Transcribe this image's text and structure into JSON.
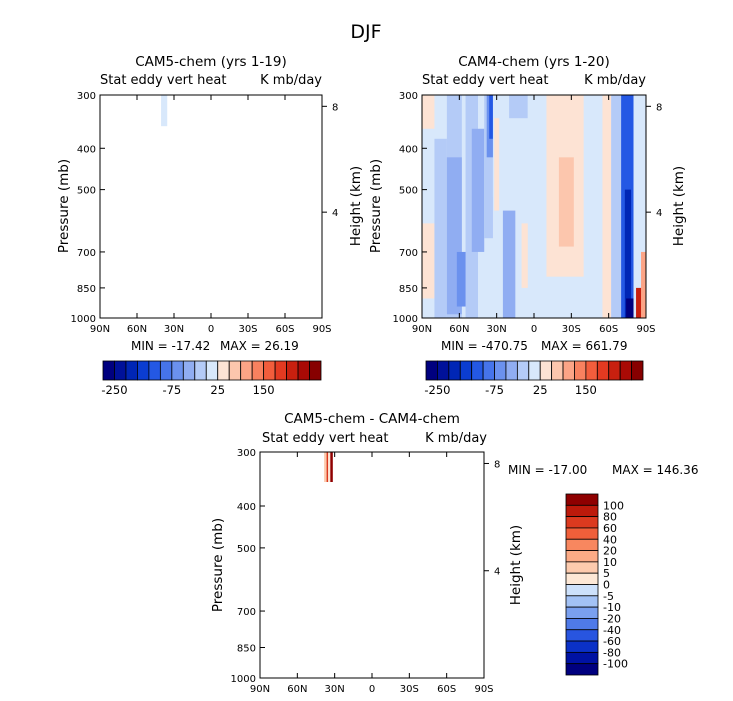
{
  "figure": {
    "title": "DJF"
  },
  "colorbar_top": {
    "colors": [
      "#00007f",
      "#00119a",
      "#0026b5",
      "#0b3dd1",
      "#2458e4",
      "#4674ea",
      "#6b91ee",
      "#90adf2",
      "#b4cbf7",
      "#d8e8fb",
      "#fde3d4",
      "#fcc6ad",
      "#fca486",
      "#f8815f",
      "#f25d3c",
      "#e33a21",
      "#c8200f",
      "#a90a05",
      "#870000"
    ],
    "tick_labels": [
      {
        "label": "-250",
        "boundary": 1
      },
      {
        "label": "-75",
        "boundary": 6
      },
      {
        "label": "25",
        "boundary": 10
      },
      {
        "label": "150",
        "boundary": 14
      }
    ]
  },
  "colorbar_diff": {
    "colors": [
      "#00007f",
      "#0012a3",
      "#0b31c7",
      "#2855e0",
      "#4f7ae8",
      "#7aa0ef",
      "#a3c2f5",
      "#cde1fb",
      "#fde8d6",
      "#fdcbae",
      "#fcab86",
      "#f8875f",
      "#f05f3a",
      "#dc3a1f",
      "#bd1a0b",
      "#8f0000"
    ],
    "labels": [
      "100",
      "80",
      "60",
      "40",
      "20",
      "10",
      "5",
      "0",
      "-5",
      "-10",
      "-20",
      "-40",
      "-60",
      "-80",
      "-100"
    ]
  },
  "chart_data": [
    {
      "type": "heatmap",
      "title": "CAM5-chem (yrs 1-19)",
      "subtitle_left": "Stat eddy vert heat",
      "subtitle_right": "K mb/day",
      "ylabel": "Pressure (mb)",
      "ylabel_right": "Height (km)",
      "x_ticks": [
        "90N",
        "60N",
        "30N",
        "0",
        "30S",
        "60S",
        "90S"
      ],
      "y_ticks": [
        "300",
        "400",
        "500",
        "700",
        "850",
        "1000"
      ],
      "y_ticks_right": [
        "8",
        "4"
      ],
      "stats_min_label": "MIN = -17.42",
      "stats_max_label": "MAX =  26.19",
      "ylim": [
        1000,
        300
      ],
      "xlim": [
        90,
        -90
      ],
      "cells": [
        {
          "x0": 40.5,
          "x1": 35.5,
          "p0": 300,
          "p1": 355,
          "color": "#d8e8fb"
        }
      ]
    },
    {
      "type": "heatmap",
      "title": "CAM4-chem (yrs 1-20)",
      "subtitle_left": "Stat eddy vert heat",
      "subtitle_right": "K mb/day",
      "ylabel": "Pressure (mb)",
      "ylabel_right": "Height (km)",
      "x_ticks": [
        "90N",
        "60N",
        "30N",
        "0",
        "30S",
        "60S",
        "90S"
      ],
      "y_ticks": [
        "300",
        "400",
        "500",
        "700",
        "850",
        "1000"
      ],
      "y_ticks_right": [
        "8",
        "4"
      ],
      "stats_min_label": "MIN = -470.75",
      "stats_max_label": "MAX = 661.79",
      "ylim": [
        1000,
        300
      ],
      "xlim": [
        90,
        -90
      ],
      "cells": [
        {
          "x0": 90,
          "x1": -90,
          "p0": 300,
          "p1": 1000,
          "color": "#d8e8fb"
        },
        {
          "x0": 90,
          "x1": 80,
          "p0": 300,
          "p1": 360,
          "color": "#fde3d4"
        },
        {
          "x0": 90,
          "x1": 80,
          "p0": 600,
          "p1": 900,
          "color": "#fde3d4"
        },
        {
          "x0": 80,
          "x1": 70,
          "p0": 380,
          "p1": 1000,
          "color": "#b4cbf7"
        },
        {
          "x0": 70,
          "x1": 58,
          "p0": 300,
          "p1": 1000,
          "color": "#b4cbf7"
        },
        {
          "x0": 70,
          "x1": 58,
          "p0": 420,
          "p1": 980,
          "color": "#90adf2"
        },
        {
          "x0": 62,
          "x1": 50,
          "p0": 700,
          "p1": 940,
          "color": "#6b91ee"
        },
        {
          "x0": 55,
          "x1": 45,
          "p0": 300,
          "p1": 1000,
          "color": "#b4cbf7"
        },
        {
          "x0": 50,
          "x1": 40,
          "p0": 360,
          "p1": 700,
          "color": "#90adf2"
        },
        {
          "x0": 40,
          "x1": 33,
          "p0": 300,
          "p1": 650,
          "color": "#b4cbf7"
        },
        {
          "x0": 38,
          "x1": 30,
          "p0": 300,
          "p1": 420,
          "color": "#6b91ee"
        },
        {
          "x0": 36,
          "x1": 32,
          "p0": 300,
          "p1": 380,
          "color": "#2458e4"
        },
        {
          "x0": 33,
          "x1": 27,
          "p0": 300,
          "p1": 520,
          "color": "#d8e8fb"
        },
        {
          "x0": 32,
          "x1": 28,
          "p0": 340,
          "p1": 560,
          "color": "#fde3d4"
        },
        {
          "x0": 25,
          "x1": 15,
          "p0": 560,
          "p1": 1000,
          "color": "#90adf2"
        },
        {
          "x0": 20,
          "x1": 5,
          "p0": 300,
          "p1": 340,
          "color": "#b4cbf7"
        },
        {
          "x0": 10,
          "x1": 0,
          "p0": 600,
          "p1": 850,
          "color": "#fde3d4"
        },
        {
          "x0": 5,
          "x1": -5,
          "p0": 300,
          "p1": 1000,
          "color": "#d8e8fb"
        },
        {
          "x0": -10,
          "x1": -40,
          "p0": 300,
          "p1": 800,
          "color": "#fde3d4"
        },
        {
          "x0": -20,
          "x1": -32,
          "p0": 420,
          "p1": 680,
          "color": "#fcc6ad"
        },
        {
          "x0": -40,
          "x1": -55,
          "p0": 300,
          "p1": 1000,
          "color": "#d8e8fb"
        },
        {
          "x0": -55,
          "x1": -62,
          "p0": 300,
          "p1": 1000,
          "color": "#fde3d4"
        },
        {
          "x0": -62,
          "x1": -70,
          "p0": 300,
          "p1": 1000,
          "color": "#b4cbf7"
        },
        {
          "x0": -70,
          "x1": -80,
          "p0": 300,
          "p1": 1000,
          "color": "#2458e4"
        },
        {
          "x0": -73,
          "x1": -78,
          "p0": 500,
          "p1": 1000,
          "color": "#0026b5"
        },
        {
          "x0": -74,
          "x1": -80,
          "p0": 900,
          "p1": 1000,
          "color": "#00007f"
        },
        {
          "x0": -80,
          "x1": -87,
          "p0": 300,
          "p1": 1000,
          "color": "#d8e8fb"
        },
        {
          "x0": -82,
          "x1": -88,
          "p0": 850,
          "p1": 1000,
          "color": "#c8200f"
        },
        {
          "x0": -86,
          "x1": -90,
          "p0": 700,
          "p1": 1000,
          "color": "#fca486"
        }
      ]
    },
    {
      "type": "heatmap",
      "title": "CAM5-chem - CAM4-chem",
      "subtitle_left": "Stat eddy vert heat",
      "subtitle_right": "K mb/day",
      "ylabel": "Pressure (mb)",
      "ylabel_right": "Height (km)",
      "x_ticks": [
        "90N",
        "60N",
        "30N",
        "0",
        "30S",
        "60S",
        "90S"
      ],
      "y_ticks": [
        "300",
        "400",
        "500",
        "700",
        "850",
        "1000"
      ],
      "y_ticks_right": [
        "8",
        "4"
      ],
      "stats_min_label": "MIN = -17.00",
      "stats_max_label": "MAX = 146.36",
      "ylim": [
        1000,
        300
      ],
      "xlim": [
        90,
        -90
      ],
      "cells": [
        {
          "x0": 38.5,
          "x1": 36.5,
          "p0": 300,
          "p1": 352,
          "color": "#fdcbae"
        },
        {
          "x0": 36.5,
          "x1": 35.2,
          "p0": 300,
          "p1": 352,
          "color": "#dc3a1f"
        },
        {
          "x0": 35.2,
          "x1": 33.5,
          "p0": 300,
          "p1": 352,
          "color": "#fde8d6"
        },
        {
          "x0": 33.5,
          "x1": 31.5,
          "p0": 300,
          "p1": 352,
          "color": "#8f0000"
        }
      ]
    }
  ]
}
